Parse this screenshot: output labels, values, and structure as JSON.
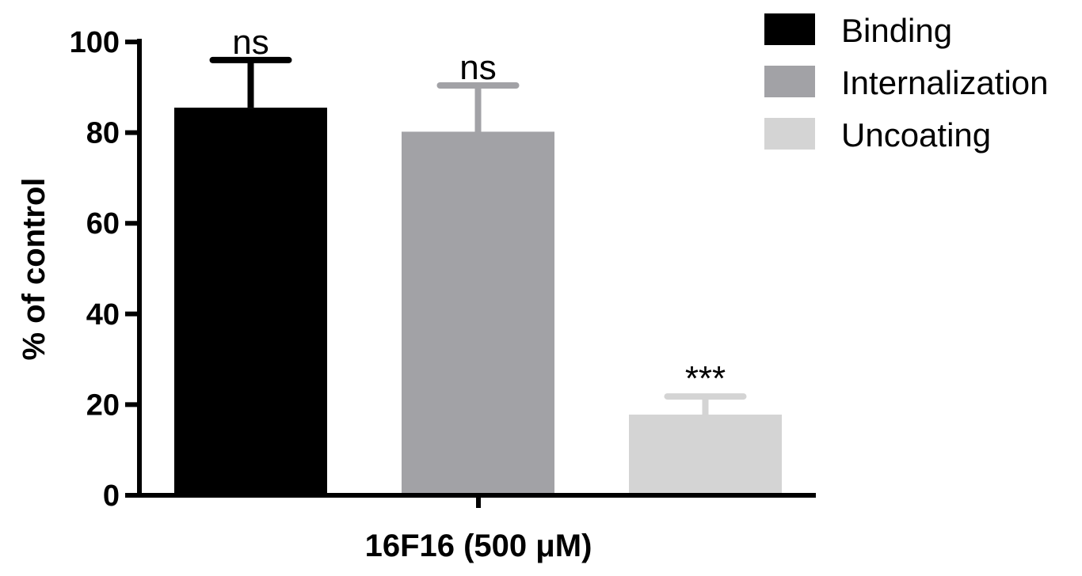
{
  "chart_data": {
    "type": "bar",
    "categories": [
      "16F16 (500 μM)"
    ],
    "xlabel": "16F16 (500 μM)",
    "ylabel": "% of control",
    "ylim": [
      0,
      100
    ],
    "yticks": [
      0,
      20,
      40,
      60,
      80,
      100
    ],
    "grid": false,
    "legend_position": "top-right",
    "series": [
      {
        "name": "Binding",
        "values": [
          85.5
        ],
        "error": [
          10.5
        ],
        "color": "#000000",
        "annotation": "ns"
      },
      {
        "name": "Internalization",
        "values": [
          80.2
        ],
        "error": [
          10.2
        ],
        "color": "#a2a2a6",
        "annotation": "ns"
      },
      {
        "name": "Uncoating",
        "values": [
          17.8
        ],
        "error": [
          4.0
        ],
        "color": "#d4d4d4",
        "annotation": "***"
      }
    ]
  }
}
